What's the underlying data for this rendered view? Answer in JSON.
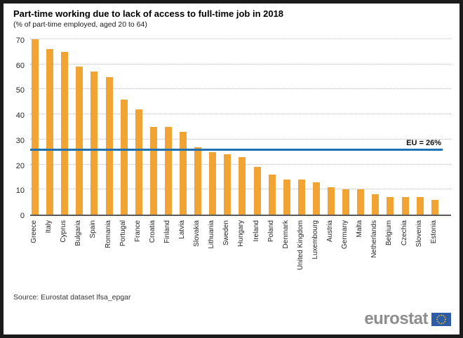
{
  "header": {
    "title": "Part-time working due to lack of access to full-time job in 2018",
    "subtitle": "(% of part-time employed, aged 20 to 64)"
  },
  "chart_data": {
    "type": "bar",
    "title": "Part-time working due to lack of access to full-time job in 2018",
    "subtitle": "(% of part-time employed, aged 20 to 64)",
    "xlabel": "",
    "ylabel": "",
    "ylim": [
      0,
      70
    ],
    "yticks": [
      0,
      10,
      20,
      30,
      40,
      50,
      60,
      70
    ],
    "grid": "horizontal-dotted",
    "bar_color": "#F1A433",
    "categories": [
      "Greece",
      "Italy",
      "Cyprus",
      "Bulgaria",
      "Spain",
      "Romania",
      "Portugal",
      "France",
      "Croatia",
      "Finland",
      "Latvia",
      "Slovakia",
      "Lithuania",
      "Sweden",
      "Hungary",
      "Ireland",
      "Poland",
      "Denmark",
      "United Kingdom",
      "Luxembourg",
      "Austria",
      "Germany",
      "Malta",
      "Netherlands",
      "Belgium",
      "Czechia",
      "Slovenia",
      "Estonia"
    ],
    "values": [
      70,
      66,
      65,
      59,
      57,
      55,
      46,
      42,
      35,
      35,
      33,
      27,
      25,
      24,
      23,
      19,
      16,
      14,
      14,
      13,
      11,
      10,
      10,
      8,
      7,
      7,
      7,
      6
    ],
    "reference_line": {
      "label": "EU = 26%",
      "value": 26,
      "color": "#2271B3"
    }
  },
  "footer": {
    "source": "Source: Eurostat dataset lfsa_epgar",
    "logo_text": "eurostat",
    "flag_blue": "#2D5CA8",
    "flag_star_yellow": "#FFCC00"
  }
}
